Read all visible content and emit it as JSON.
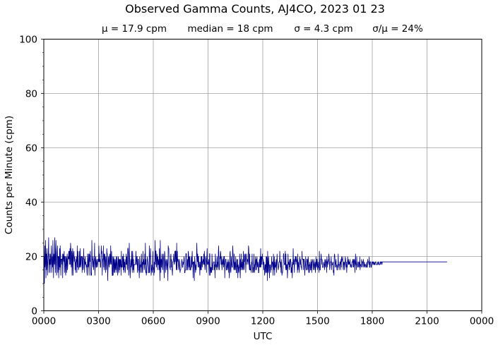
{
  "chart_data": {
    "type": "line",
    "title": "Observed Gamma Counts, AJ4CO, 2023 01 23",
    "stats": [
      "μ = 17.9 cpm",
      "median = 18 cpm",
      "σ = 4.3 cpm",
      "σ/μ = 24%"
    ],
    "xlabel": "UTC",
    "ylabel": "Counts per Minute (cpm)",
    "x_ticks": [
      "0000",
      "0300",
      "0600",
      "0900",
      "1200",
      "1500",
      "1800",
      "2100",
      "0000"
    ],
    "y_ticks": [
      "0",
      "20",
      "40",
      "60",
      "80",
      "100"
    ],
    "ylim": [
      0,
      100
    ],
    "x_range_minutes": [
      0,
      1440
    ],
    "grid": true,
    "series": [
      {
        "color": "#00008b",
        "sampling": "one value per minute, 0000–2400 UTC (values estimated from the plot)",
        "x_minutes_start": 0,
        "x_minutes_step": 1,
        "values": [
          19,
          20,
          10,
          24,
          16,
          18,
          26,
          12,
          21,
          15,
          23,
          20,
          13,
          17,
          20,
          22,
          27,
          14,
          21,
          17,
          19,
          14,
          21,
          17,
          20,
          24,
          14,
          17,
          20,
          16,
          26,
          19,
          12,
          21,
          19,
          17,
          27,
          19,
          14,
          22,
          26,
          18,
          13,
          18,
          22,
          24,
          14,
          20,
          20,
          12,
          20,
          15,
          23,
          16,
          24,
          20,
          13,
          19,
          19,
          19,
          17,
          21,
          12,
          19,
          21,
          19,
          18,
          22,
          14,
          20,
          20,
          15,
          13,
          20,
          19,
          14,
          19,
          21,
          15,
          17,
          20,
          19,
          22,
          19,
          22,
          17,
          23,
          17,
          25,
          23,
          16,
          18,
          22,
          13,
          21,
          23,
          13,
          19,
          21,
          22,
          18,
          19,
          20,
          15,
          18,
          14,
          19,
          18,
          20,
          14,
          24,
          16,
          22,
          19,
          15,
          16,
          16,
          22,
          16,
          17,
          23,
          16,
          17,
          20,
          20,
          20,
          14,
          20,
          19,
          15,
          16,
          23,
          19,
          19,
          14,
          18,
          20,
          17,
          18,
          17,
          16,
          17,
          14,
          13,
          21,
          17,
          16,
          21,
          17,
          13,
          21,
          20,
          18,
          22,
          16,
          13,
          14,
          13,
          26,
          19,
          19,
          16,
          20,
          18,
          15,
          18,
          19,
          25,
          13,
          16,
          19,
          20,
          16,
          16,
          19,
          18,
          16,
          17,
          19,
          19,
          18,
          24,
          18,
          21,
          18,
          19,
          16,
          16,
          19,
          24,
          21,
          22,
          13,
          18,
          19,
          19,
          24,
          16,
          21,
          15,
          21,
          20,
          18,
          14,
          20,
          18,
          15,
          23,
          21,
          21,
          11,
          15,
          19,
          20,
          17,
          16,
          20,
          21,
          17,
          18,
          24,
          17,
          18,
          22,
          16,
          13,
          13,
          20,
          13,
          19,
          20,
          14,
          19,
          17,
          14,
          19,
          16,
          15,
          20,
          14,
          17,
          20,
          17,
          13,
          15,
          20,
          19,
          14,
          19,
          15,
          19,
          16,
          19,
          18,
          13,
          22,
          16,
          17,
          16,
          20,
          20,
          15,
          21,
          14,
          19,
          16,
          18,
          15,
          14,
          19,
          17,
          21,
          17,
          20,
          16,
          15,
          23,
          23,
          21,
          13,
          16,
          25,
          20,
          16,
          12,
          15,
          19,
          16,
          17,
          22,
          17,
          14,
          22,
          20,
          15,
          19,
          14,
          17,
          17,
          17,
          17,
          17,
          19,
          22,
          17,
          17,
          20,
          20,
          14,
          15,
          19,
          19,
          15,
          15,
          12,
          20,
          17,
          14,
          17,
          16,
          19,
          21,
          14,
          16,
          18,
          14,
          22,
          17,
          19,
          18,
          15,
          16,
          21,
          17,
          25,
          14,
          19,
          13,
          14,
          14,
          20,
          19,
          18,
          17,
          16,
          14,
          14,
          24,
          14,
          20,
          20,
          23,
          17,
          13,
          15,
          17,
          15,
          14,
          20,
          22,
          15,
          16,
          13,
          18,
          14,
          19,
          26,
          17,
          22,
          22,
          16,
          17,
          21,
          20,
          15,
          20,
          17,
          17,
          19,
          15,
          23,
          16,
          11,
          26,
          19,
          14,
          19,
          16,
          19,
          21,
          16,
          15,
          19,
          21,
          19,
          15,
          12,
          22,
          21,
          17,
          14,
          18,
          19,
          18,
          15,
          17,
          19,
          16,
          11,
          24,
          23,
          23,
          18,
          17,
          16,
          16,
          15,
          20,
          21,
          16,
          19,
          15,
          15,
          13,
          18,
          18,
          19,
          21,
          18,
          17,
          18,
          22,
          18,
          22,
          22,
          17,
          15,
          25,
          15,
          22,
          19,
          18,
          19,
          16,
          15,
          18,
          19,
          16,
          14,
          15,
          15,
          16,
          17,
          18,
          19,
          18,
          16,
          16,
          18,
          17,
          18,
          20,
          19,
          14,
          14,
          15,
          15,
          21,
          21,
          21,
          15,
          15,
          19,
          18,
          15,
          22,
          21,
          16,
          20,
          15,
          20,
          17,
          15,
          15,
          16,
          20,
          16,
          19,
          22,
          17,
          18,
          12,
          18,
          18,
          18,
          11,
          20,
          18,
          16,
          14,
          17,
          15,
          19,
          25,
          21,
          18,
          21,
          16,
          20,
          20,
          16,
          18,
          17,
          13,
          16,
          18,
          15,
          20,
          15,
          20,
          20,
          16,
          18,
          18,
          19,
          17,
          21,
          17,
          22,
          17,
          15,
          17,
          20,
          19,
          18,
          14,
          20,
          23,
          17,
          18,
          17,
          18,
          19,
          16,
          13,
          21,
          21,
          13,
          16,
          16,
          14,
          16,
          14,
          21,
          18,
          15,
          15,
          17,
          18,
          18,
          18,
          15,
          17,
          12,
          21,
          19,
          16,
          17,
          15,
          18,
          20,
          16,
          18,
          15,
          22,
          24,
          17,
          15,
          17,
          20,
          19,
          22,
          21,
          17,
          20,
          17,
          15,
          18,
          19,
          17,
          20,
          16,
          17,
          20,
          20,
          12,
          17,
          18,
          19,
          19,
          15,
          15,
          17,
          18,
          15,
          16,
          19,
          18,
          14,
          18,
          12,
          15,
          21,
          22,
          15,
          14,
          17,
          20,
          17,
          16,
          16,
          24,
          22,
          19,
          17,
          15,
          21,
          15,
          17,
          18,
          15,
          20,
          17,
          14,
          14,
          19,
          16,
          19,
          12,
          17,
          16,
          14,
          16,
          16,
          21,
          15,
          12,
          19,
          15,
          21,
          16,
          18,
          15,
          16,
          19,
          15,
          22,
          18,
          15,
          16,
          21,
          18,
          20,
          21,
          14,
          18,
          17,
          21,
          19,
          18,
          19,
          17,
          18,
          24,
          23,
          17,
          15,
          21,
          15,
          15,
          15,
          17,
          14,
          18,
          17,
          21,
          17,
          14,
          16,
          14,
          17,
          21,
          15,
          14,
          17,
          17,
          20,
          15,
          19,
          15,
          19,
          20,
          17,
          16,
          18,
          17,
          14,
          14,
          17,
          19,
          16,
          20,
          16,
          23,
          16,
          20,
          17,
          20,
          19,
          21,
          17,
          19,
          18,
          15,
          18,
          16,
          13,
          14,
          17,
          17,
          14,
          20,
          14,
          20,
          19,
          11,
          22,
          15,
          14,
          20,
          18,
          15,
          12,
          17,
          16,
          17,
          14,
          16,
          15,
          20,
          16,
          18,
          18,
          17,
          13,
          21,
          17,
          15,
          20,
          13,
          18,
          16,
          16,
          17,
          19,
          14,
          17,
          21,
          18,
          17,
          16,
          15,
          16,
          18,
          18,
          18,
          22,
          18,
          16,
          18,
          14,
          19,
          16,
          13,
          14,
          14,
          16,
          17,
          21,
          21,
          18,
          17,
          17,
          17,
          22,
          15,
          21,
          16,
          15,
          17,
          17,
          12,
          15,
          21,
          17,
          18,
          17,
          15,
          19,
          16,
          18,
          19,
          19,
          14,
          16,
          14,
          18,
          12,
          17,
          17,
          23,
          17,
          19,
          17,
          14,
          19,
          18,
          20,
          20,
          17,
          20,
          18,
          19,
          17,
          14,
          21,
          15,
          18,
          17,
          16,
          14,
          19,
          20,
          17,
          19,
          17,
          16,
          16,
          15,
          22,
          19,
          19,
          19,
          19,
          15,
          19,
          19,
          18,
          13,
          16,
          17,
          20,
          16,
          15,
          15,
          19,
          19,
          18,
          15,
          20,
          19,
          14,
          17,
          14,
          17,
          18,
          17,
          15,
          15,
          19,
          17,
          14,
          18,
          18,
          19,
          17,
          15,
          17,
          19,
          17,
          15,
          17,
          18,
          14,
          16,
          20,
          17,
          16,
          19,
          19,
          15,
          16,
          18,
          16,
          16,
          14,
          22,
          18,
          15,
          15,
          19,
          19,
          21,
          19,
          17,
          19,
          16,
          16,
          16,
          16,
          18,
          17,
          17,
          15,
          19,
          17,
          16,
          19,
          18,
          18,
          14,
          20,
          16,
          18,
          18,
          19,
          17,
          21,
          20,
          19,
          15,
          16,
          18,
          18,
          18,
          20,
          15,
          18,
          17,
          17,
          17,
          18,
          14,
          15,
          13,
          20,
          21,
          20,
          16,
          17,
          18,
          19,
          16,
          17,
          15,
          15,
          17,
          16,
          21,
          17,
          17,
          15,
          17,
          17,
          18,
          18,
          15,
          19,
          16,
          20,
          18,
          19,
          19,
          20,
          16,
          15,
          18,
          17,
          18,
          15,
          17,
          20,
          19,
          18,
          16,
          18,
          14,
          17,
          16,
          20,
          18,
          17,
          19,
          17,
          18,
          18,
          17,
          19,
          16,
          17,
          17,
          16,
          16,
          18,
          18,
          18,
          19,
          16,
          19,
          16,
          18,
          19,
          18,
          14,
          18,
          21,
          17,
          17,
          15,
          20,
          17,
          18,
          16,
          17,
          16,
          18,
          18,
          17,
          16,
          20,
          15,
          17,
          17,
          17,
          16,
          19,
          18,
          18,
          16,
          18,
          18,
          19,
          16,
          17,
          18,
          16,
          17,
          17,
          17,
          16,
          16,
          17,
          18,
          16,
          16,
          19,
          18,
          18,
          18,
          17,
          20,
          16,
          16,
          18,
          18,
          18,
          16,
          16,
          17,
          18,
          18,
          18,
          17,
          18,
          18,
          17,
          17,
          18,
          17,
          17,
          18,
          18,
          18,
          17,
          17,
          17,
          17,
          17,
          18,
          17,
          18,
          18,
          17,
          17,
          17,
          17,
          18,
          18,
          17,
          18,
          18,
          18,
          17,
          18,
          18,
          18,
          18,
          18,
          18,
          18,
          18,
          18,
          18,
          18,
          18,
          18,
          18,
          18,
          18,
          18,
          18,
          18,
          18,
          18,
          18,
          18,
          18,
          18,
          18,
          18,
          18,
          18,
          18,
          18,
          18,
          18,
          18,
          18,
          18,
          18,
          18,
          18,
          18,
          18,
          18,
          18,
          18,
          18,
          18,
          18,
          18,
          18,
          18,
          18,
          18,
          18,
          18,
          18,
          18,
          18,
          18,
          18,
          18,
          18,
          18,
          18,
          18,
          18,
          18,
          18,
          18,
          18,
          18,
          18,
          18,
          18,
          18,
          18,
          18,
          18,
          18,
          18,
          18,
          18,
          18,
          18,
          18,
          18,
          18,
          18,
          18,
          18,
          18,
          18,
          18,
          18,
          18,
          18,
          18,
          18,
          18,
          18,
          18,
          18,
          18,
          18,
          18,
          18,
          18,
          18,
          18,
          18,
          18,
          18,
          18,
          18,
          18,
          18,
          18,
          18,
          18,
          18,
          18,
          18,
          18,
          18,
          18,
          18,
          18,
          18,
          18,
          18,
          18,
          18,
          18,
          18,
          18,
          18,
          18,
          18,
          18,
          18,
          18,
          18,
          18,
          18,
          18,
          18,
          18,
          18,
          18,
          18,
          18,
          18,
          18,
          18,
          18,
          18,
          18,
          18,
          18,
          18,
          18,
          18,
          18,
          18,
          18,
          18,
          18,
          18,
          18,
          18,
          18,
          18,
          18,
          18,
          18,
          18,
          18,
          18,
          18,
          18,
          18,
          18,
          18,
          18,
          18,
          18,
          18,
          18,
          18,
          18,
          18,
          18,
          18,
          18,
          18,
          18,
          18,
          18,
          18,
          18,
          18,
          18,
          18,
          18,
          18,
          18,
          18,
          18,
          18,
          18,
          18,
          18,
          18,
          18,
          18
        ]
      }
    ]
  }
}
